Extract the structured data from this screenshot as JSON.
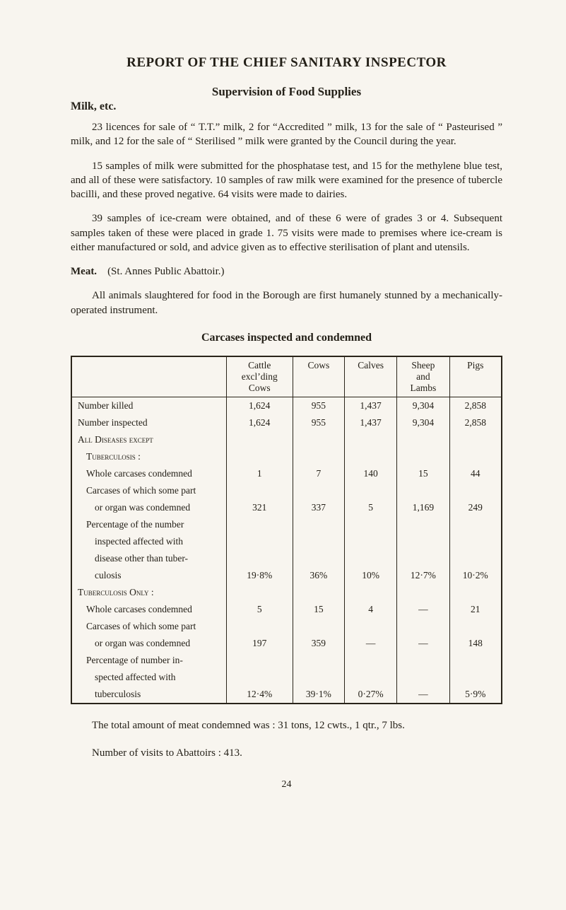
{
  "title": "REPORT OF THE CHIEF SANITARY INSPECTOR",
  "section_heading": "Supervision of Food Supplies",
  "milk_label": "Milk, etc.",
  "para1": "23 licences for sale of “ T.T.” milk, 2 for “Accredited ” milk, 13 for the sale of “ Pasteurised ” milk, and 12 for the sale of “ Sterilised ” milk were granted by the Council during the year.",
  "para2": "15 samples of milk were submitted for the phosphatase test, and 15 for the methylene blue test, and all of these were satisfactory. 10 samples of raw milk were examined for the presence of tubercle bacilli, and these proved negative.  64 visits were made to dairies.",
  "para3": "39 samples of ice-cream were obtained, and of these 6 were of grades 3 or 4.  Subsequent samples taken of these were placed in grade 1. 75 visits were made to premises where ice-cream is either manufactured or sold, and advice given as to effective sterilisation of plant and utensils.",
  "meat_label": "Meat.",
  "meat_paren": "(St. Annes Public Abattoir.)",
  "para4": "All animals slaughtered for food in the Borough are first humanely stunned by a mechanically-operated instrument.",
  "table_heading": "Carcases inspected and condemned",
  "table": {
    "columns": [
      "",
      "Cattle\nexcl’ding\nCows",
      "Cows",
      "Calves",
      "Sheep\nand\nLambs",
      "Pigs"
    ],
    "rows": [
      {
        "label": "Number killed",
        "indent": 0,
        "cells": [
          "1,624",
          "955",
          "1,437",
          "9,304",
          "2,858"
        ]
      },
      {
        "label": "Number inspected",
        "indent": 0,
        "cells": [
          "1,624",
          "955",
          "1,437",
          "9,304",
          "2,858"
        ]
      },
      {
        "label": "All Diseases except",
        "smallcaps": true,
        "indent": 0,
        "cells": [
          "",
          "",
          "",
          "",
          ""
        ]
      },
      {
        "label": "Tuberculosis :",
        "smallcaps": true,
        "indent": 1,
        "cells": [
          "",
          "",
          "",
          "",
          ""
        ]
      },
      {
        "label": "Whole carcases condemned",
        "indent": 1,
        "cells": [
          "1",
          "7",
          "140",
          "15",
          "44"
        ]
      },
      {
        "label": "Carcases of which some part",
        "indent": 1,
        "cells": [
          "",
          "",
          "",
          "",
          ""
        ]
      },
      {
        "label": "or organ was condemned",
        "indent": 2,
        "cells": [
          "321",
          "337",
          "5",
          "1,169",
          "249"
        ]
      },
      {
        "label": "Percentage of the number",
        "indent": 1,
        "cells": [
          "",
          "",
          "",
          "",
          ""
        ]
      },
      {
        "label": "inspected affected with",
        "indent": 2,
        "cells": [
          "",
          "",
          "",
          "",
          ""
        ]
      },
      {
        "label": "disease other than tuber-",
        "indent": 2,
        "cells": [
          "",
          "",
          "",
          "",
          ""
        ]
      },
      {
        "label": "culosis",
        "indent": 2,
        "cells": [
          "19·8%",
          "36%",
          "10%",
          "12·7%",
          "10·2%"
        ]
      },
      {
        "label": "Tuberculosis Only :",
        "smallcaps": true,
        "indent": 0,
        "cells": [
          "",
          "",
          "",
          "",
          ""
        ]
      },
      {
        "label": "Whole carcases condemned",
        "indent": 1,
        "cells": [
          "5",
          "15",
          "4",
          "—",
          "21"
        ]
      },
      {
        "label": "Carcases of which some part",
        "indent": 1,
        "cells": [
          "",
          "",
          "",
          "",
          ""
        ]
      },
      {
        "label": "or organ was condemned",
        "indent": 2,
        "cells": [
          "197",
          "359",
          "—",
          "—",
          "148"
        ]
      },
      {
        "label": "Percentage of number in-",
        "indent": 1,
        "cells": [
          "",
          "",
          "",
          "",
          ""
        ]
      },
      {
        "label": "spected affected with",
        "indent": 2,
        "cells": [
          "",
          "",
          "",
          "",
          ""
        ]
      },
      {
        "label": "tuberculosis",
        "indent": 2,
        "cells": [
          "12·4%",
          "39·1%",
          "0·27%",
          "—",
          "5·9%"
        ]
      }
    ]
  },
  "footer1": "The total amount of meat condemned was :  31 tons, 12 cwts., 1 qtr., 7 lbs.",
  "footer2": "Number of visits to Abattoirs :  413.",
  "page_number": "24"
}
